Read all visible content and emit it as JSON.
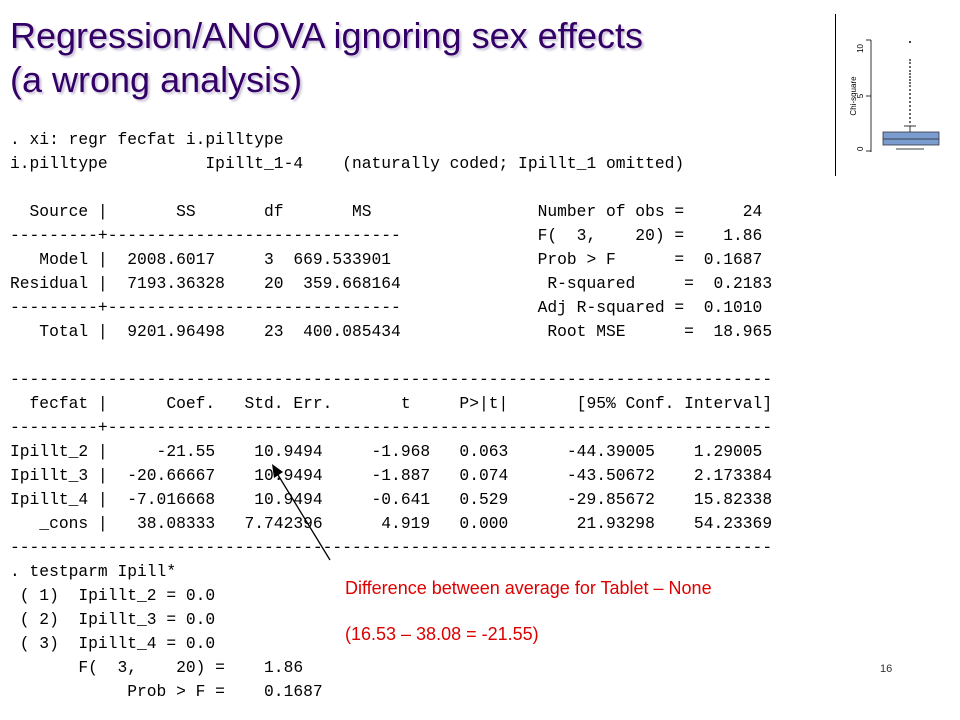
{
  "slide": {
    "title_line1": "Regression/ANOVA ignoring sex effects",
    "title_line2": "(a wrong analysis)",
    "page_number": "16"
  },
  "stata_output": {
    "lines": [
      ". xi: regr fecfat i.pilltype",
      "i.pilltype          Ipillt_1-4    (naturally coded; Ipillt_1 omitted)",
      "",
      "  Source |       SS       df       MS                 Number of obs =      24",
      "---------+------------------------------              F(  3,    20) =    1.86",
      "   Model |  2008.6017     3  669.533901               Prob > F      =  0.1687",
      "Residual |  7193.36328    20  359.668164               R-squared     =  0.2183",
      "---------+------------------------------              Adj R-squared =  0.1010",
      "   Total |  9201.96498    23  400.085434               Root MSE      =  18.965",
      "",
      "------------------------------------------------------------------------------",
      "  fecfat |      Coef.   Std. Err.       t     P>|t|       [95% Conf. Interval]",
      "---------+--------------------------------------------------------------------",
      "Ipillt_2 |     -21.55    10.9494     -1.968   0.063      -44.39005    1.29005",
      "Ipillt_3 |  -20.66667    10.9494     -1.887   0.074      -43.50672    2.173384",
      "Ipillt_4 |  -7.016668    10.9494     -0.641   0.529      -29.85672    15.82338",
      "   _cons |   38.08333   7.742396      4.919   0.000       21.93298    54.23369",
      "------------------------------------------------------------------------------",
      ". testparm Ipill*",
      " ( 1)  Ipillt_2 = 0.0",
      " ( 2)  Ipillt_3 = 0.0",
      " ( 3)  Ipillt_4 = 0.0",
      "       F(  3,    20) =    1.86",
      "            Prob > F =    0.1687"
    ]
  },
  "annotation": {
    "line1": "Difference between average for Tablet – None",
    "line2": "(16.53 – 38.08 = -21.55)",
    "color": "#dd0000"
  },
  "boxplot": {
    "ylabel": "Chi-square",
    "ticks": [
      "10",
      "5",
      "0"
    ],
    "box_color": "#7b9ccf"
  }
}
